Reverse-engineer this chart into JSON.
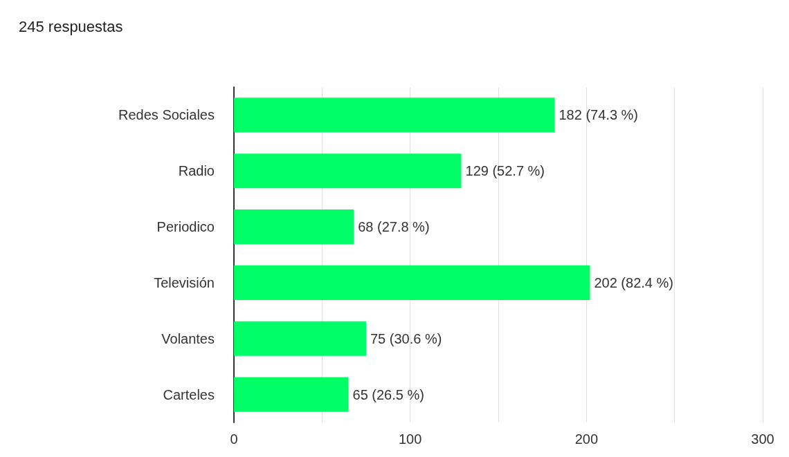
{
  "chart_data": {
    "type": "bar",
    "orientation": "horizontal",
    "title": "245 respuestas",
    "categories": [
      "Redes Sociales",
      "Radio",
      "Periodico",
      "Televisión",
      "Volantes",
      "Carteles"
    ],
    "values": [
      182,
      129,
      68,
      202,
      75,
      65
    ],
    "value_labels": [
      "182 (74.3 %)",
      "129 (52.7 %)",
      "68 (27.8 %)",
      "202 (82.4 %)",
      "75 (30.6 %)",
      "65 (26.5 %)"
    ],
    "color": "#00ff66",
    "xlim": [
      0,
      300
    ],
    "xticks": [
      0,
      {
        "value": 50,
        "label": null
      },
      100,
      {
        "value": 150,
        "label": null
      },
      200,
      {
        "value": 250,
        "label": null
      },
      300
    ],
    "grid": "x"
  }
}
